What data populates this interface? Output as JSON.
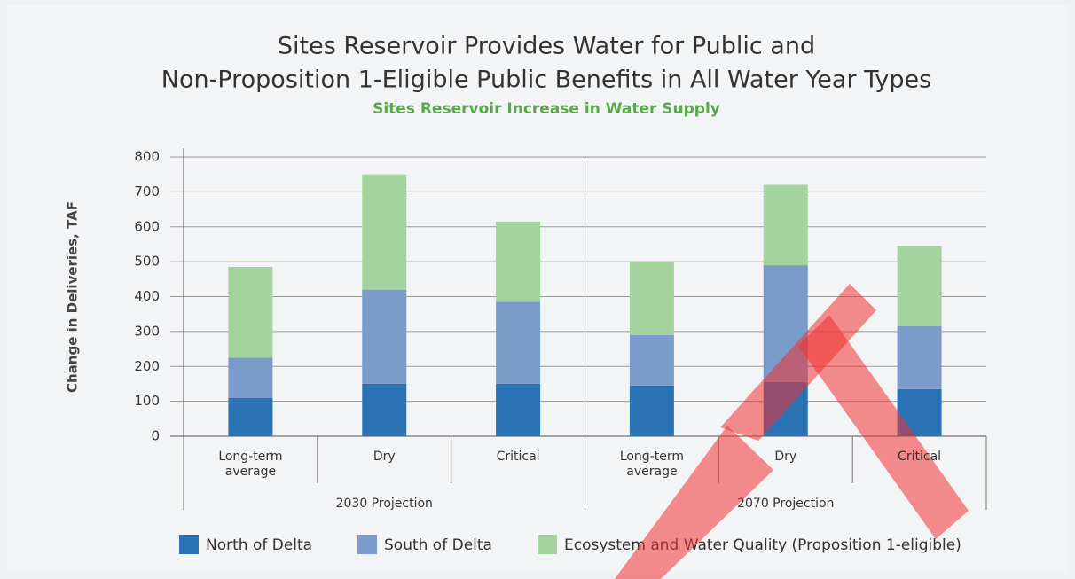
{
  "chart_data": {
    "type": "stacked_bar",
    "title": [
      "Sites Reservoir Provides Water for Public and",
      "Non-Proposition 1-Eligible Public Benefits in All Water Year Types"
    ],
    "subtitle": "Sites Reservoir Increase in Water Supply",
    "y_label": "Change in Deliveries, TAF",
    "categories": [
      "Long-term average",
      "Dry",
      "Critical",
      "Long-term average",
      "Dry",
      "Critical"
    ],
    "groups": [
      "2030 Projection",
      "2070 Projection"
    ],
    "series": [
      {
        "name": "North of Delta",
        "color": "#2a74b6",
        "values": [
          110,
          150,
          150,
          145,
          155,
          135
        ]
      },
      {
        "name": "South of Delta",
        "color": "#7b9ccb",
        "values": [
          115,
          270,
          235,
          145,
          335,
          180
        ]
      },
      {
        "name": "Ecosystem and Water Quality (Proposition 1-eligible)",
        "color": "#a4d39d",
        "values": [
          260,
          330,
          230,
          210,
          230,
          230
        ]
      }
    ],
    "ylim": [
      0,
      800
    ],
    "yticks": [
      0,
      100,
      200,
      300,
      400,
      500,
      600,
      700,
      800
    ],
    "grid": true
  }
}
